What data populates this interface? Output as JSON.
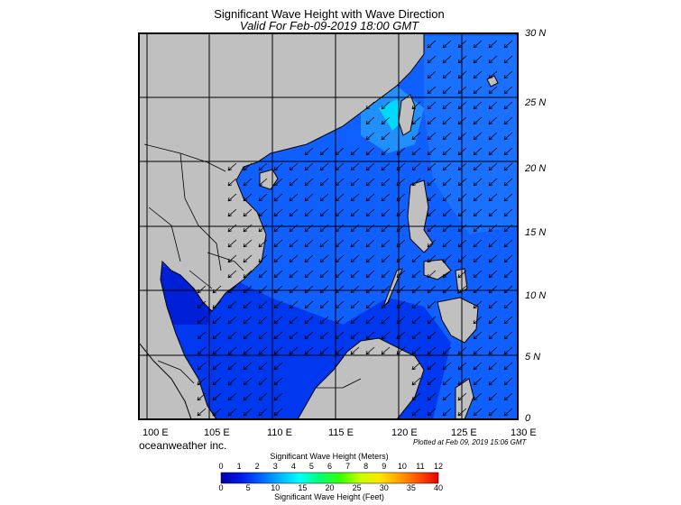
{
  "header": {
    "title": "Significant Wave Height with Wave Direction",
    "subtitle": "Valid For Feb-09-2019 18:00 GMT"
  },
  "axes": {
    "lon_labels": [
      "100 E",
      "105 E",
      "110 E",
      "115 E",
      "120 E",
      "125 E",
      "130 E"
    ],
    "lat_labels": [
      "30 N",
      "25 N",
      "20 N",
      "15 N",
      "10 N",
      "5 N",
      "0"
    ]
  },
  "footer": {
    "credit": "oceanweather inc.",
    "plotted": "Plotted at Feb 09, 2019 15:06 GMT"
  },
  "colorbar": {
    "label_meters": "Significant Wave Height (Meters)",
    "label_feet": "Significant Wave Height (Feet)",
    "meters_ticks": [
      "0",
      "1",
      "2",
      "3",
      "4",
      "5",
      "6",
      "7",
      "8",
      "9",
      "10",
      "11",
      "12"
    ],
    "feet_ticks": [
      "0",
      "5",
      "10",
      "15",
      "20",
      "25",
      "30",
      "35",
      "40"
    ],
    "colors": [
      "#0000aa",
      "#0018e8",
      "#0060ff",
      "#00b4ff",
      "#00ffff",
      "#00ff78",
      "#38ff00",
      "#c8ff00",
      "#ffe600",
      "#ffa000",
      "#ff5000",
      "#e60000"
    ]
  },
  "colors": {
    "land": "#c0c0c0",
    "ocean_light": "#1060ff",
    "ocean_dark": "#0028e0",
    "ocean_high": "#00c8ff",
    "grid": "#000000"
  },
  "map": {
    "lon_range": [
      99,
      130
    ],
    "lat_range": [
      0,
      30
    ],
    "wave_direction": "from NE (arrows point SW)"
  }
}
